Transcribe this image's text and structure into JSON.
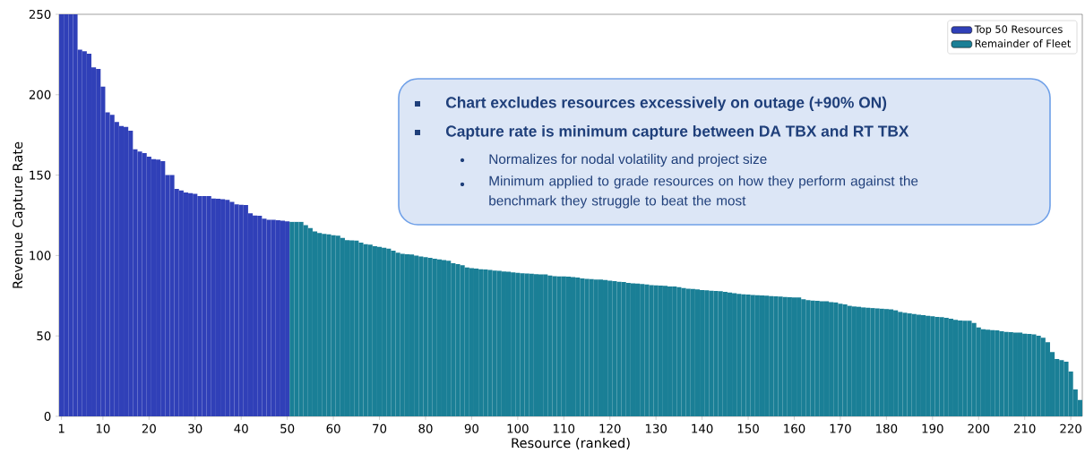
{
  "chart_data": {
    "type": "bar",
    "xlabel": "Resource (ranked)",
    "ylabel": "Revenue Capture Rate",
    "xlim": [
      0.5,
      222.5
    ],
    "ylim": [
      0,
      250
    ],
    "xticks": [
      1,
      10,
      20,
      30,
      40,
      50,
      60,
      70,
      80,
      90,
      100,
      110,
      120,
      130,
      140,
      150,
      160,
      170,
      180,
      190,
      200,
      210,
      220
    ],
    "yticks": [
      0,
      50,
      100,
      150,
      200,
      250
    ],
    "legend": "top right",
    "annotations": [
      "Chart excludes resources excessively on outage (+90% ON)",
      "Capture rate is minimum capture between DA TBX and RT TBX",
      "Normalizes for nodal volatility and project size",
      "Minimum applied to grade resources on how they perform against the benchmark they struggle to beat the most"
    ],
    "series": [
      {
        "name": "Top 50 Resources",
        "color": "#3040b8",
        "x": [
          1,
          2,
          3,
          4,
          5,
          6,
          7,
          8,
          9,
          10,
          11,
          12,
          13,
          14,
          15,
          16,
          17,
          18,
          19,
          20,
          21,
          22,
          23,
          24,
          25,
          26,
          27,
          28,
          29,
          30,
          31,
          32,
          33,
          34,
          35,
          36,
          37,
          38,
          39,
          40,
          41,
          42,
          43,
          44,
          45,
          46,
          47,
          48,
          49,
          50
        ],
        "values": [
          250,
          250,
          250,
          250,
          228,
          227,
          225.5,
          217,
          216,
          205,
          189,
          187.5,
          183,
          180.5,
          180,
          177.6,
          166,
          164.6,
          163.7,
          161.5,
          160,
          159.6,
          158.7,
          150,
          150,
          141.4,
          140.5,
          139.2,
          138.8,
          138.3,
          137,
          137,
          137,
          135.5,
          135.3,
          135,
          134.6,
          133.4,
          131.8,
          131.6,
          131.4,
          126.2,
          124.9,
          124.7,
          122.9,
          122.2,
          122.2,
          122,
          121.6,
          121.2
        ]
      },
      {
        "name": "Remainder of Fleet",
        "color": "#1a7f96",
        "x": [
          51,
          52,
          53,
          54,
          55,
          56,
          57,
          58,
          59,
          60,
          61,
          62,
          63,
          64,
          65,
          66,
          67,
          68,
          69,
          70,
          71,
          72,
          73,
          74,
          75,
          76,
          77,
          78,
          79,
          80,
          81,
          82,
          83,
          84,
          85,
          86,
          87,
          88,
          89,
          90,
          91,
          92,
          93,
          94,
          95,
          96,
          97,
          98,
          99,
          100,
          101,
          102,
          103,
          104,
          105,
          106,
          107,
          108,
          109,
          110,
          111,
          112,
          113,
          114,
          115,
          116,
          117,
          118,
          119,
          120,
          121,
          122,
          123,
          124,
          125,
          126,
          127,
          128,
          129,
          130,
          131,
          132,
          133,
          134,
          135,
          136,
          137,
          138,
          139,
          140,
          141,
          142,
          143,
          144,
          145,
          146,
          147,
          148,
          149,
          150,
          151,
          152,
          153,
          154,
          155,
          156,
          157,
          158,
          159,
          160,
          161,
          162,
          163,
          164,
          165,
          166,
          167,
          168,
          169,
          170,
          171,
          172,
          173,
          174,
          175,
          176,
          177,
          178,
          179,
          180,
          181,
          182,
          183,
          184,
          185,
          186,
          187,
          188,
          189,
          190,
          191,
          192,
          193,
          194,
          195,
          196,
          197,
          198,
          199,
          200,
          201,
          202,
          203,
          204,
          205,
          206,
          207,
          208,
          209,
          210,
          211,
          212,
          213,
          214,
          215,
          216,
          217,
          218,
          219,
          220,
          221,
          222
        ],
        "values": [
          121,
          121,
          121,
          118.8,
          117,
          115,
          114,
          113.5,
          113.2,
          112.6,
          112.3,
          111,
          109.5,
          109.4,
          109.2,
          108,
          107,
          106.8,
          105.8,
          105.4,
          104.8,
          104.3,
          103,
          101.7,
          101,
          100.8,
          100.6,
          100,
          99.4,
          99,
          98.5,
          98,
          97.6,
          97.2,
          96.7,
          95.2,
          94.7,
          94,
          92.6,
          92.2,
          91.9,
          91.5,
          91.3,
          91,
          90.6,
          90.5,
          90,
          89.9,
          89.5,
          89.2,
          89,
          88.8,
          88.6,
          88.4,
          88.2,
          88.2,
          87.6,
          87.2,
          87,
          87,
          86.8,
          86.6,
          86.3,
          85.7,
          85.5,
          85.3,
          85.1,
          85,
          84.8,
          84.3,
          84.1,
          83.7,
          83.5,
          82.9,
          82.7,
          82.5,
          82.3,
          82,
          81.6,
          81.4,
          81.3,
          81.1,
          80.7,
          80.7,
          80.3,
          79.8,
          79.4,
          79.2,
          78.9,
          78.5,
          78.3,
          78.1,
          78,
          77.8,
          77.4,
          77,
          76.6,
          76.1,
          75.9,
          75.7,
          75.5,
          75.3,
          75.2,
          75,
          74.8,
          74.6,
          74.4,
          74.2,
          74,
          73.9,
          73.9,
          72.8,
          72.2,
          72,
          71.8,
          71.5,
          71.5,
          71,
          70.8,
          70,
          69.6,
          68.7,
          68.3,
          68.1,
          67.7,
          67.5,
          67.3,
          67.1,
          66.9,
          66.7,
          66.5,
          65.9,
          64.9,
          64.4,
          64,
          63.6,
          63.2,
          62.9,
          62.5,
          62.2,
          61.8,
          61.6,
          61.2,
          60.7,
          60,
          59.6,
          59.4,
          59.4,
          58.1,
          55.3,
          54.2,
          53.8,
          53.6,
          53.4,
          52.9,
          52.5,
          52.3,
          52.1,
          52,
          51.4,
          51.2,
          51,
          50.1,
          48.8,
          46,
          39.9,
          35.6,
          34.9,
          34,
          27.8,
          16.7,
          10.2
        ]
      }
    ]
  }
}
